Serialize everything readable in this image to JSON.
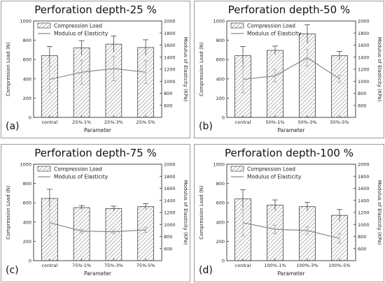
{
  "chart_data": [
    {
      "type": "bar",
      "title": "Perforation depth-25 %",
      "panel_label": "(a)",
      "categories": [
        "contral",
        "25%-1%",
        "25%-3%",
        "25%-5%"
      ],
      "xlabel": "Parameter",
      "ylabel": "Compression Load (N)",
      "y2label": "Modulus of Elasticity (KPa)",
      "ylim": [
        0,
        1000
      ],
      "y2lim": [
        400,
        2000
      ],
      "yticks": [
        0,
        200,
        400,
        600,
        800,
        1000
      ],
      "y2ticks": [
        600,
        800,
        1000,
        1200,
        1400,
        1600,
        1800,
        2000
      ],
      "legend": [
        "Compression Load",
        "Modulus of Elasticity"
      ],
      "series": [
        {
          "name": "Compression Load",
          "kind": "bar",
          "axis": "left",
          "values": [
            640,
            720,
            760,
            725
          ],
          "errors": [
            95,
            75,
            85,
            80
          ]
        },
        {
          "name": "Modulus of Elasticity",
          "kind": "line",
          "axis": "right",
          "values": [
            1030,
            1150,
            1210,
            1150
          ],
          "errors": [
            220,
            200,
            200,
            190
          ]
        }
      ]
    },
    {
      "type": "bar",
      "title": "Perforation depth-50 %",
      "panel_label": "(b)",
      "categories": [
        "contral",
        "50%-1%",
        "50%-3%",
        "50%-5%"
      ],
      "xlabel": "Parameter",
      "ylabel": "Compression Load (N)",
      "y2label": "Modulus of Elasticity (KPa)",
      "ylim": [
        0,
        1000
      ],
      "y2lim": [
        400,
        2000
      ],
      "yticks": [
        0,
        200,
        400,
        600,
        800,
        1000
      ],
      "y2ticks": [
        600,
        800,
        1000,
        1200,
        1400,
        1600,
        1800,
        2000
      ],
      "legend": [
        "Compression Load",
        "Modulus of Elasticity"
      ],
      "series": [
        {
          "name": "Compression Load",
          "kind": "bar",
          "axis": "left",
          "values": [
            640,
            695,
            865,
            640
          ],
          "errors": [
            95,
            45,
            95,
            45
          ]
        },
        {
          "name": "Modulus of Elasticity",
          "kind": "line",
          "axis": "right",
          "values": [
            1030,
            1090,
            1390,
            1040
          ],
          "errors": [
            220,
            100,
            140,
            60
          ]
        }
      ]
    },
    {
      "type": "bar",
      "title": "Perforation depth-75 %",
      "panel_label": "(c)",
      "categories": [
        "contral",
        "75%-1%",
        "75%-3%",
        "75%-5%"
      ],
      "xlabel": "Parameter",
      "ylabel": "Compression Load (N)",
      "y2label": "Modulus of Elasticity (KPa)",
      "ylim": [
        0,
        1000
      ],
      "y2lim": [
        400,
        2000
      ],
      "yticks": [
        0,
        200,
        400,
        600,
        800,
        1000
      ],
      "y2ticks": [
        600,
        800,
        1000,
        1200,
        1400,
        1600,
        1800,
        2000
      ],
      "legend": [
        "Compression Load",
        "Modulus of Elasticity"
      ],
      "series": [
        {
          "name": "Compression Load",
          "kind": "bar",
          "axis": "left",
          "values": [
            645,
            550,
            540,
            560
          ],
          "errors": [
            95,
            20,
            25,
            30
          ]
        },
        {
          "name": "Modulus of Elasticity",
          "kind": "line",
          "axis": "right",
          "values": [
            1030,
            890,
            880,
            910
          ],
          "errors": [
            220,
            30,
            30,
            40
          ]
        }
      ]
    },
    {
      "type": "bar",
      "title": "Perforation depth-100 %",
      "panel_label": "(d)",
      "categories": [
        "contral",
        "100%-1%",
        "100%-3%",
        "100%-5%"
      ],
      "xlabel": "Parameter",
      "ylabel": "Compression Load (N)",
      "y2label": "Modulus of Elasticity (KPa)",
      "ylim": [
        0,
        1000
      ],
      "y2lim": [
        400,
        2000
      ],
      "yticks": [
        0,
        200,
        400,
        600,
        800,
        1000
      ],
      "y2ticks": [
        600,
        800,
        1000,
        1200,
        1400,
        1600,
        1800,
        2000
      ],
      "legend": [
        "Compression Load",
        "Modulus of Elasticity"
      ],
      "series": [
        {
          "name": "Compression Load",
          "kind": "bar",
          "axis": "left",
          "values": [
            640,
            575,
            560,
            470
          ],
          "errors": [
            95,
            55,
            45,
            60
          ]
        },
        {
          "name": "Modulus of Elasticity",
          "kind": "line",
          "axis": "right",
          "values": [
            1030,
            920,
            900,
            770
          ],
          "errors": [
            220,
            70,
            60,
            80
          ]
        }
      ]
    }
  ]
}
